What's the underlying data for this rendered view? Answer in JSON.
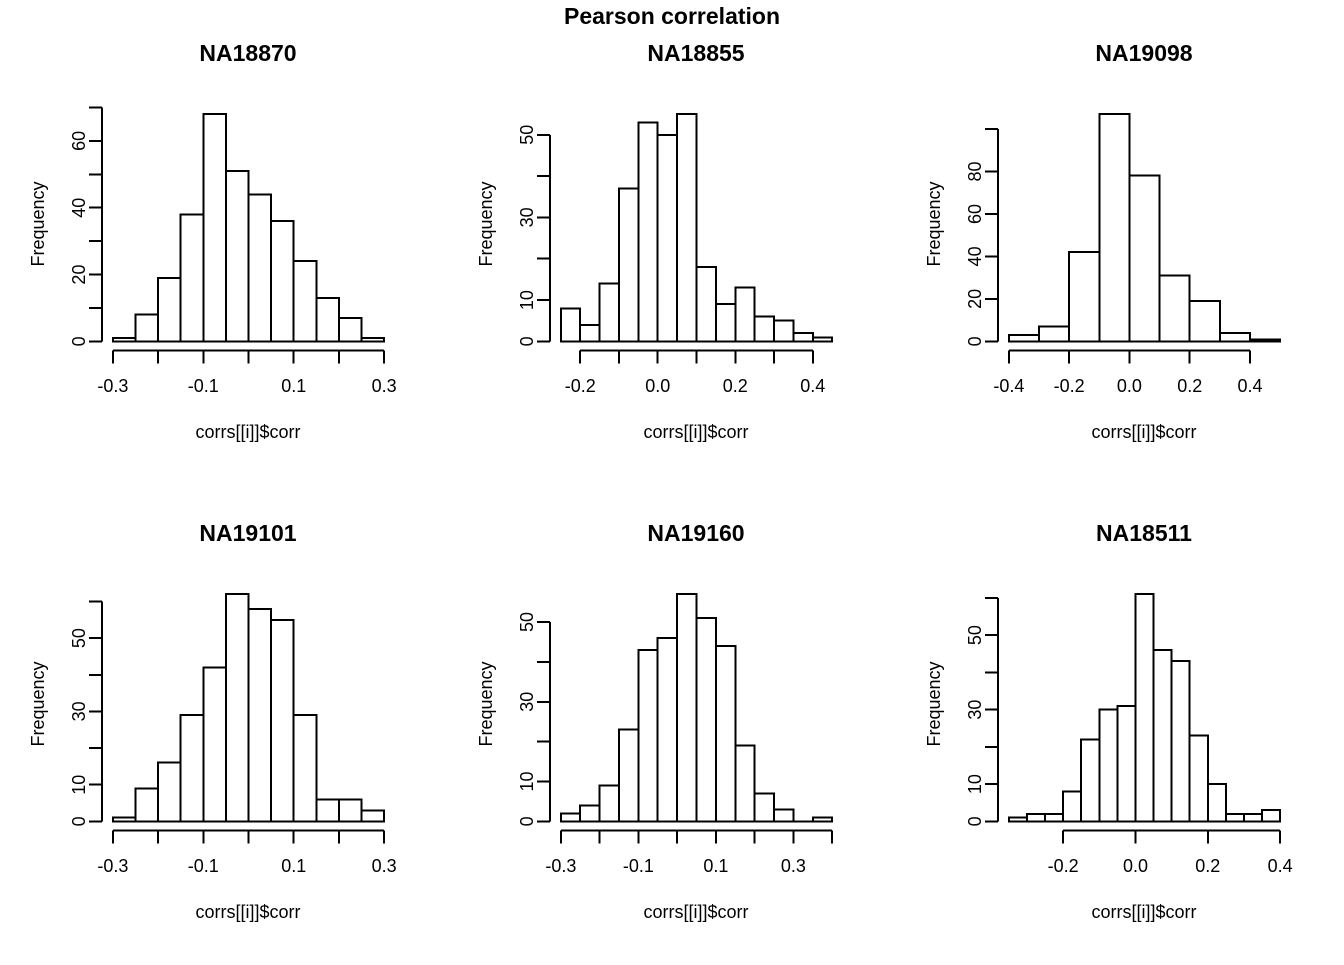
{
  "figure": {
    "main_title": "Pearson correlation",
    "background_color": "#ffffff",
    "stroke_color": "#000000"
  },
  "chart_data": {
    "type": "bar",
    "subtype": "histogram-grid",
    "rows": 2,
    "cols": 3,
    "title": "Pearson correlation",
    "xlabel": "corrs[[i]]$corr",
    "ylabel": "Frequency",
    "grid": "off",
    "legend": "none",
    "bar_fill": "#ffffff",
    "bar_stroke": "#000000",
    "charts": [
      {
        "title": "NA18870",
        "breaks_start": -0.3,
        "bin_width": 0.05,
        "counts": [
          1,
          8,
          19,
          38,
          68,
          51,
          44,
          36,
          24,
          13,
          7,
          1
        ],
        "ylim": [
          0,
          68
        ],
        "xlim": [
          -0.3,
          0.3
        ],
        "y_ticks": [
          {
            "v": 0,
            "label": "0"
          },
          {
            "v": 10,
            "label": ""
          },
          {
            "v": 20,
            "label": "20"
          },
          {
            "v": 30,
            "label": ""
          },
          {
            "v": 40,
            "label": "40"
          },
          {
            "v": 50,
            "label": ""
          },
          {
            "v": 60,
            "label": "60"
          },
          {
            "v": 70,
            "label": ""
          }
        ],
        "x_ticks": [
          {
            "v": -0.3,
            "label": "-0.3"
          },
          {
            "v": -0.2,
            "label": ""
          },
          {
            "v": -0.1,
            "label": "-0.1"
          },
          {
            "v": 0,
            "label": ""
          },
          {
            "v": 0.1,
            "label": "0.1"
          },
          {
            "v": 0.2,
            "label": ""
          },
          {
            "v": 0.3,
            "label": "0.3"
          }
        ]
      },
      {
        "title": "NA18855",
        "breaks_start": -0.25,
        "bin_width": 0.05,
        "counts": [
          8,
          4,
          14,
          37,
          53,
          50,
          55,
          18,
          9,
          13,
          6,
          5,
          2,
          1
        ],
        "ylim": [
          0,
          55
        ],
        "xlim": [
          -0.25,
          0.45
        ],
        "y_ticks": [
          {
            "v": 0,
            "label": "0"
          },
          {
            "v": 10,
            "label": "10"
          },
          {
            "v": 20,
            "label": ""
          },
          {
            "v": 30,
            "label": "30"
          },
          {
            "v": 40,
            "label": ""
          },
          {
            "v": 50,
            "label": "50"
          }
        ],
        "x_ticks": [
          {
            "v": -0.2,
            "label": "-0.2"
          },
          {
            "v": -0.1,
            "label": ""
          },
          {
            "v": 0,
            "label": "0.0"
          },
          {
            "v": 0.1,
            "label": ""
          },
          {
            "v": 0.2,
            "label": "0.2"
          },
          {
            "v": 0.3,
            "label": ""
          },
          {
            "v": 0.4,
            "label": "0.4"
          }
        ]
      },
      {
        "title": "NA19098",
        "breaks_start": -0.4,
        "bin_width": 0.1,
        "counts": [
          3,
          7,
          42,
          107,
          78,
          31,
          19,
          4,
          1
        ],
        "ylim": [
          0,
          107
        ],
        "xlim": [
          -0.4,
          0.5
        ],
        "y_ticks": [
          {
            "v": 0,
            "label": "0"
          },
          {
            "v": 20,
            "label": "20"
          },
          {
            "v": 40,
            "label": "40"
          },
          {
            "v": 60,
            "label": "60"
          },
          {
            "v": 80,
            "label": "80"
          },
          {
            "v": 100,
            "label": ""
          }
        ],
        "x_ticks": [
          {
            "v": -0.4,
            "label": "-0.4"
          },
          {
            "v": -0.2,
            "label": "-0.2"
          },
          {
            "v": 0,
            "label": "0.0"
          },
          {
            "v": 0.2,
            "label": "0.2"
          },
          {
            "v": 0.4,
            "label": "0.4"
          }
        ]
      },
      {
        "title": "NA19101",
        "breaks_start": -0.3,
        "bin_width": 0.05,
        "counts": [
          1,
          9,
          16,
          29,
          42,
          62,
          58,
          55,
          29,
          6,
          6,
          3
        ],
        "ylim": [
          0,
          62
        ],
        "xlim": [
          -0.3,
          0.3
        ],
        "y_ticks": [
          {
            "v": 0,
            "label": "0"
          },
          {
            "v": 10,
            "label": "10"
          },
          {
            "v": 20,
            "label": ""
          },
          {
            "v": 30,
            "label": "30"
          },
          {
            "v": 40,
            "label": ""
          },
          {
            "v": 50,
            "label": "50"
          },
          {
            "v": 60,
            "label": ""
          }
        ],
        "x_ticks": [
          {
            "v": -0.3,
            "label": "-0.3"
          },
          {
            "v": -0.2,
            "label": ""
          },
          {
            "v": -0.1,
            "label": "-0.1"
          },
          {
            "v": 0,
            "label": ""
          },
          {
            "v": 0.1,
            "label": "0.1"
          },
          {
            "v": 0.2,
            "label": ""
          },
          {
            "v": 0.3,
            "label": "0.3"
          }
        ]
      },
      {
        "title": "NA19160",
        "breaks_start": -0.3,
        "bin_width": 0.05,
        "counts": [
          2,
          4,
          9,
          23,
          43,
          46,
          57,
          51,
          44,
          19,
          7,
          3,
          0,
          1
        ],
        "ylim": [
          0,
          57
        ],
        "xlim": [
          -0.3,
          0.4
        ],
        "y_ticks": [
          {
            "v": 0,
            "label": "0"
          },
          {
            "v": 10,
            "label": "10"
          },
          {
            "v": 20,
            "label": ""
          },
          {
            "v": 30,
            "label": "30"
          },
          {
            "v": 40,
            "label": ""
          },
          {
            "v": 50,
            "label": "50"
          }
        ],
        "x_ticks": [
          {
            "v": -0.3,
            "label": "-0.3"
          },
          {
            "v": -0.2,
            "label": ""
          },
          {
            "v": -0.1,
            "label": "-0.1"
          },
          {
            "v": 0,
            "label": ""
          },
          {
            "v": 0.1,
            "label": "0.1"
          },
          {
            "v": 0.2,
            "label": ""
          },
          {
            "v": 0.3,
            "label": "0.3"
          },
          {
            "v": 0.4,
            "label": ""
          }
        ]
      },
      {
        "title": "NA18511",
        "breaks_start": -0.35,
        "bin_width": 0.05,
        "counts": [
          1,
          2,
          2,
          8,
          22,
          30,
          31,
          61,
          46,
          43,
          23,
          10,
          2,
          2,
          3
        ],
        "ylim": [
          0,
          61
        ],
        "xlim": [
          -0.35,
          0.4
        ],
        "y_ticks": [
          {
            "v": 0,
            "label": "0"
          },
          {
            "v": 10,
            "label": "10"
          },
          {
            "v": 20,
            "label": ""
          },
          {
            "v": 30,
            "label": "30"
          },
          {
            "v": 40,
            "label": ""
          },
          {
            "v": 50,
            "label": "50"
          },
          {
            "v": 60,
            "label": ""
          }
        ],
        "x_ticks": [
          {
            "v": -0.2,
            "label": "-0.2"
          },
          {
            "v": 0,
            "label": "0.0"
          },
          {
            "v": 0.2,
            "label": "0.2"
          },
          {
            "v": 0.4,
            "label": "0.4"
          }
        ]
      }
    ]
  }
}
